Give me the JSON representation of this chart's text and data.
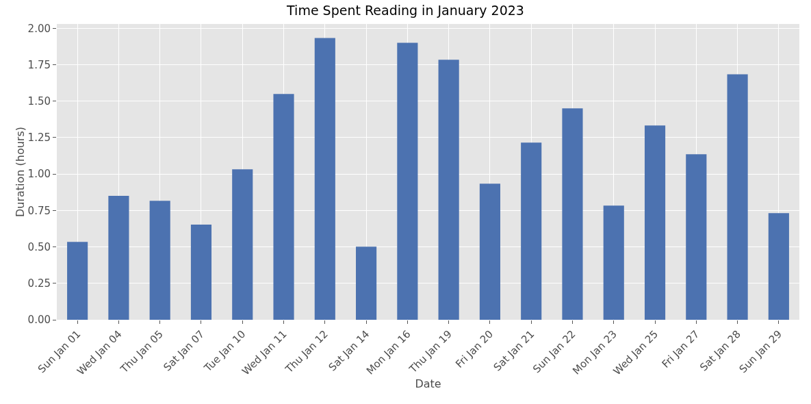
{
  "chart_data": {
    "type": "bar",
    "title": "Time Spent Reading in January 2023",
    "xlabel": "Date",
    "ylabel": "Duration (hours)",
    "categories": [
      "Sun Jan 01",
      "Wed Jan 04",
      "Thu Jan 05",
      "Sat Jan 07",
      "Tue Jan 10",
      "Wed Jan 11",
      "Thu Jan 12",
      "Sat Jan 14",
      "Mon Jan 16",
      "Thu Jan 19",
      "Fri Jan 20",
      "Sat Jan 21",
      "Sun Jan 22",
      "Mon Jan 23",
      "Wed Jan 25",
      "Fri Jan 27",
      "Sat Jan 28",
      "Sun Jan 29"
    ],
    "values": [
      0.535,
      0.85,
      0.817,
      0.653,
      1.033,
      1.549,
      1.934,
      0.502,
      1.901,
      1.784,
      0.934,
      1.216,
      1.451,
      0.784,
      1.333,
      1.136,
      1.685,
      0.732
    ],
    "color": "#4c72b0",
    "ylim": [
      0,
      2.03
    ],
    "yticks": [
      {
        "value": 0,
        "label": "0.00"
      },
      {
        "value": 0.25,
        "label": "0.25"
      },
      {
        "value": 0.5,
        "label": "0.50"
      },
      {
        "value": 0.75,
        "label": "0.75"
      },
      {
        "value": 1,
        "label": "1.00"
      },
      {
        "value": 1.25,
        "label": "1.25"
      },
      {
        "value": 1.5,
        "label": "1.50"
      },
      {
        "value": 1.75,
        "label": "1.75"
      },
      {
        "value": 2,
        "label": "2.00"
      }
    ],
    "grid": true
  }
}
